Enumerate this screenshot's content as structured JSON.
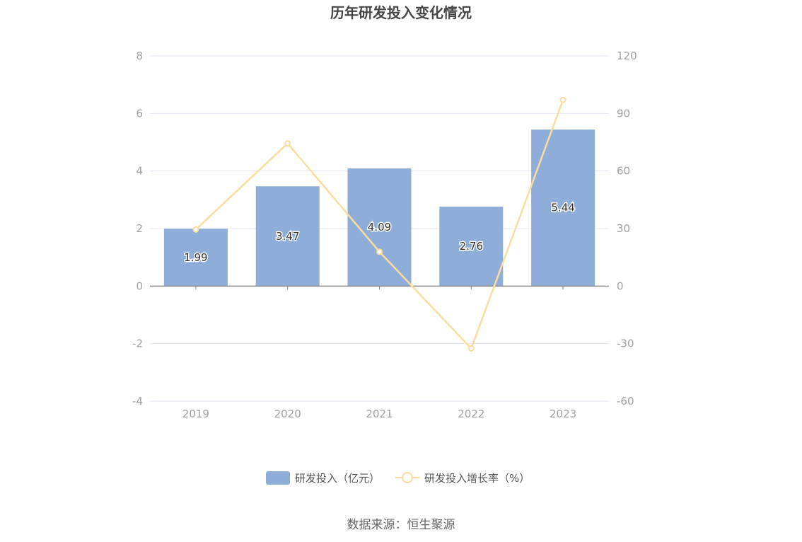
{
  "chart_data": {
    "type": "bar",
    "title": "历年研发投入变化情况",
    "categories": [
      "2019",
      "2020",
      "2021",
      "2022",
      "2023"
    ],
    "series": [
      {
        "name": "研发投入（亿元）",
        "type": "bar",
        "axis": "left",
        "color": "#8eadd9",
        "values": [
          1.99,
          3.47,
          4.09,
          2.76,
          5.44
        ],
        "labels": [
          "1.99",
          "3.47",
          "4.09",
          "2.76",
          "5.44"
        ]
      },
      {
        "name": "研发投入增长率（%）",
        "type": "line",
        "axis": "right",
        "color": "#fbdc9f",
        "values": [
          29.5,
          74.4,
          17.9,
          -32.5,
          97.1
        ]
      }
    ],
    "y_left": {
      "ylim": [
        -4,
        8
      ],
      "ticks": [
        "8",
        "6",
        "4",
        "2",
        "0",
        "-2",
        "-4"
      ],
      "tick_values": [
        8,
        6,
        4,
        2,
        0,
        -2,
        -4
      ]
    },
    "y_right": {
      "ylim": [
        -60,
        120
      ],
      "ticks": [
        "120",
        "90",
        "60",
        "30",
        "0",
        "-30",
        "-60"
      ],
      "tick_values": [
        120,
        90,
        60,
        30,
        0,
        -30,
        -60
      ]
    },
    "grid": true,
    "legend_position": "bottom-center",
    "source": "数据来源：恒生聚源"
  }
}
